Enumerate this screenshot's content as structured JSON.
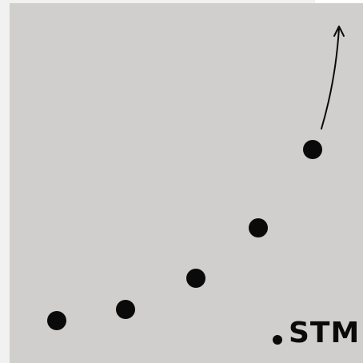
{
  "logo": {
    "text": "STM"
  },
  "colors": {
    "background": "#f1f1f1",
    "panel": "#d0cfcd",
    "ink": "#0a0a0a"
  },
  "icons": {
    "trend_arrow": "up-arrow-icon"
  }
}
